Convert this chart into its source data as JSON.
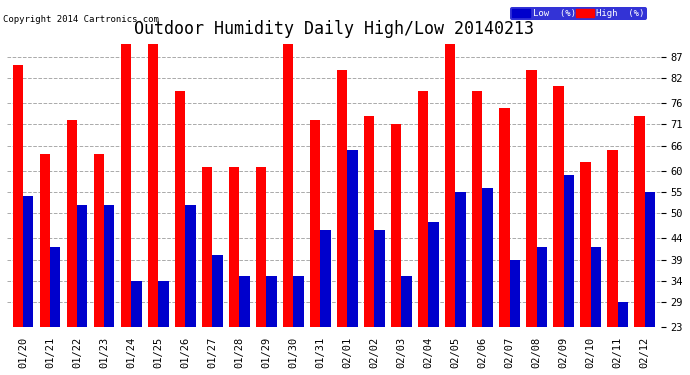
{
  "title": "Outdoor Humidity Daily High/Low 20140213",
  "copyright": "Copyright 2014 Cartronics.com",
  "dates": [
    "01/20",
    "01/21",
    "01/22",
    "01/23",
    "01/24",
    "01/25",
    "01/26",
    "01/27",
    "01/28",
    "01/29",
    "01/30",
    "01/31",
    "02/01",
    "02/02",
    "02/03",
    "02/04",
    "02/05",
    "02/06",
    "02/07",
    "02/08",
    "02/09",
    "02/10",
    "02/11",
    "02/12"
  ],
  "high_values": [
    85,
    64,
    72,
    64,
    90,
    90,
    79,
    61,
    61,
    61,
    90,
    72,
    84,
    73,
    71,
    79,
    90,
    79,
    75,
    84,
    80,
    62,
    65,
    73
  ],
  "low_values": [
    54,
    42,
    52,
    52,
    34,
    34,
    52,
    40,
    35,
    35,
    35,
    46,
    65,
    46,
    35,
    48,
    55,
    56,
    39,
    42,
    59,
    42,
    29,
    55
  ],
  "ymin": 23,
  "ymax": 90,
  "yticks": [
    23,
    29,
    34,
    39,
    44,
    50,
    55,
    60,
    66,
    71,
    76,
    82,
    87
  ],
  "bar_color_high": "#ff0000",
  "bar_color_low": "#0000cc",
  "bg_color": "#ffffff",
  "grid_color": "#aaaaaa",
  "title_fontsize": 12,
  "tick_fontsize": 7.5,
  "legend_low_label": "Low  (%)",
  "legend_high_label": "High  (%)",
  "legend_low_bg": "#0000cc",
  "legend_high_bg": "#ff0000"
}
